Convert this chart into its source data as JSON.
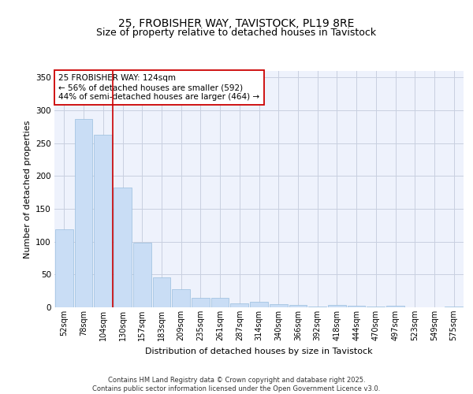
{
  "title1": "25, FROBISHER WAY, TAVISTOCK, PL19 8RE",
  "title2": "Size of property relative to detached houses in Tavistock",
  "xlabel": "Distribution of detached houses by size in Tavistock",
  "ylabel": "Number of detached properties",
  "categories": [
    "52sqm",
    "78sqm",
    "104sqm",
    "130sqm",
    "157sqm",
    "183sqm",
    "209sqm",
    "235sqm",
    "261sqm",
    "287sqm",
    "314sqm",
    "340sqm",
    "366sqm",
    "392sqm",
    "418sqm",
    "444sqm",
    "470sqm",
    "497sqm",
    "523sqm",
    "549sqm",
    "575sqm"
  ],
  "values": [
    119,
    287,
    263,
    183,
    99,
    46,
    28,
    15,
    15,
    6,
    8,
    5,
    4,
    1,
    4,
    3,
    1,
    2,
    0,
    0,
    1
  ],
  "bar_color": "#c9ddf5",
  "bar_edge_color": "#9abede",
  "bar_edge_width": 0.5,
  "vline_x": 2.5,
  "vline_color": "#cc0000",
  "annotation_text": "25 FROBISHER WAY: 124sqm\n← 56% of detached houses are smaller (592)\n44% of semi-detached houses are larger (464) →",
  "annotation_box_color": "#ffffff",
  "annotation_box_edge": "#cc0000",
  "ylim": [
    0,
    360
  ],
  "yticks": [
    0,
    50,
    100,
    150,
    200,
    250,
    300,
    350
  ],
  "footer_text": "Contains HM Land Registry data © Crown copyright and database right 2025.\nContains public sector information licensed under the Open Government Licence v3.0.",
  "bg_color": "#eef2fc",
  "grid_color": "#c8cfe0",
  "title_fontsize": 10,
  "subtitle_fontsize": 9,
  "xlabel_fontsize": 8,
  "ylabel_fontsize": 8
}
